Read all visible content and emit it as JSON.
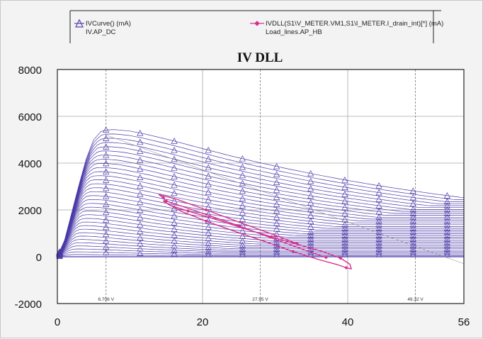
{
  "chart_data": {
    "type": "line",
    "title": "IV DLL",
    "xlabel": "",
    "ylabel": "",
    "xlim": [
      0,
      56
    ],
    "ylim": [
      -2000,
      8000
    ],
    "x_ticks": [
      {
        "value": 0,
        "label": "0"
      },
      {
        "value": 20,
        "label": "20"
      },
      {
        "value": 40,
        "label": "40"
      },
      {
        "value": 56,
        "label": "56"
      }
    ],
    "y_ticks": [
      {
        "value": 8000,
        "label": "8000"
      },
      {
        "value": 6000,
        "label": "6000"
      },
      {
        "value": 4000,
        "label": "4000"
      },
      {
        "value": 2000,
        "label": "2000"
      },
      {
        "value": 0,
        "label": "0"
      },
      {
        "value": -2000,
        "label": "-2000"
      }
    ],
    "markers": [
      {
        "x": 6.706,
        "label": "6.706 V"
      },
      {
        "x": 27.95,
        "label": "27.95 V"
      },
      {
        "x": 49.32,
        "label": "49.32 V"
      }
    ],
    "legend": [
      {
        "label": "IVCurve() (mA)",
        "sub": "IV.AP_DC",
        "symbol": "triangle",
        "color": "#5b3fb0"
      },
      {
        "label": "IVDLL(S1\\V_METER.VM1,S1\\I_METER.I_drain_int)[*] (mA)",
        "sub": "Load_lines.AP_HB",
        "symbol": "diamond",
        "color": "#d6308f"
      }
    ],
    "series": [
      {
        "name": "IVCurve() (mA) — top curve",
        "x": [
          0,
          1,
          2,
          3,
          4,
          5,
          6,
          6.7,
          8,
          10,
          12,
          16,
          20,
          24,
          28,
          32,
          36,
          40,
          44,
          48,
          52,
          56
        ],
        "values": [
          0,
          700,
          1900,
          3100,
          4200,
          5000,
          5350,
          5420,
          5430,
          5370,
          5250,
          4950,
          4620,
          4300,
          4010,
          3740,
          3490,
          3260,
          3050,
          2860,
          2680,
          2520
        ]
      },
      {
        "name": "IVDLL load line (mA)",
        "x": [
          37.0,
          33.5,
          29.5,
          25.0,
          21.0,
          17.5,
          15.0,
          14.6,
          15.5,
          18.0,
          22.0,
          26.0,
          29.5,
          33.0,
          36.5,
          39.0,
          40.3,
          40.5,
          39.8,
          38.5,
          36.0,
          32.5,
          28.5,
          24.5,
          20.5,
          17.0,
          15.0,
          14.6,
          14.0,
          16.5,
          20.5,
          25.0,
          29.5,
          33.0
        ],
        "values": [
          -30,
          350,
          800,
          1320,
          1750,
          2120,
          2380,
          2380,
          2200,
          1950,
          1580,
          1180,
          850,
          530,
          230,
          -60,
          -320,
          -520,
          -470,
          -330,
          -120,
          220,
          660,
          1080,
          1520,
          1950,
          2300,
          2520,
          2650,
          2450,
          2000,
          1480,
          980,
          560
        ]
      }
    ]
  }
}
